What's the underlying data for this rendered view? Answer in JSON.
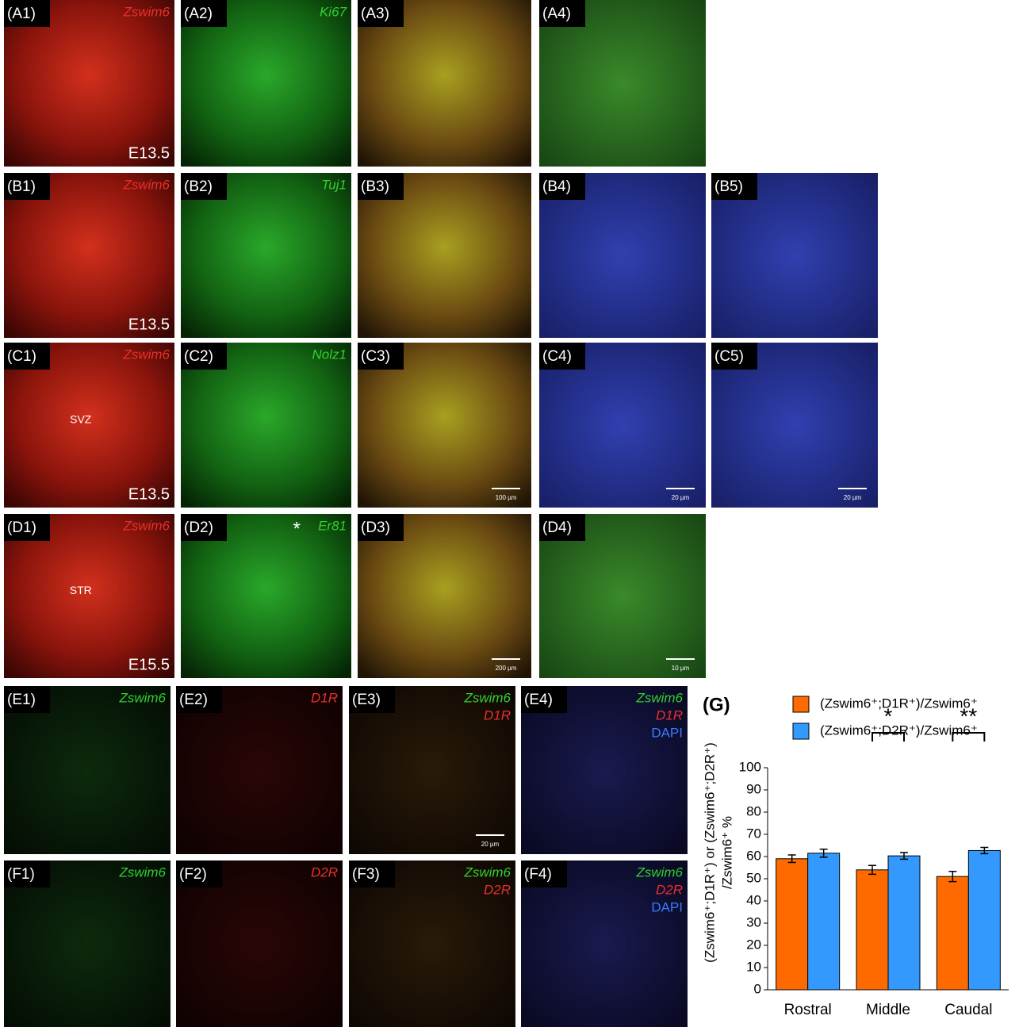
{
  "panels": [
    {
      "label": "(A1)",
      "texts": [
        "Zswim6",
        "E13.5"
      ]
    },
    {
      "label": "(A2)",
      "texts": [
        "Ki67"
      ]
    },
    {
      "label": "(A3)",
      "texts": []
    },
    {
      "label": "(A4)",
      "texts": []
    },
    {
      "label": "(B1)",
      "texts": [
        "Zswim6",
        "E13.5"
      ]
    },
    {
      "label": "(B2)",
      "texts": [
        "Tuj1"
      ]
    },
    {
      "label": "(B3)",
      "texts": []
    },
    {
      "label": "(B4)",
      "texts": []
    },
    {
      "label": "(B5)",
      "texts": []
    },
    {
      "label": "(C1)",
      "texts": [
        "Zswim6",
        "SVZ",
        "E13.5"
      ]
    },
    {
      "label": "(C2)",
      "texts": [
        "Nolz1"
      ]
    },
    {
      "label": "(C3)",
      "texts": [
        "100 µm"
      ]
    },
    {
      "label": "(C4)",
      "texts": [
        "20 µm"
      ]
    },
    {
      "label": "(C5)",
      "texts": [
        "20 µm"
      ]
    },
    {
      "label": "(D1)",
      "texts": [
        "Zswim6",
        "STR",
        "E15.5"
      ]
    },
    {
      "label": "(D2)",
      "texts": [
        "*",
        "Er81"
      ]
    },
    {
      "label": "(D3)",
      "texts": [
        "200 µm"
      ]
    },
    {
      "label": "(D4)",
      "texts": [
        "10 µm"
      ]
    },
    {
      "label": "(E1)",
      "texts": [
        "Zswim6"
      ]
    },
    {
      "label": "(E2)",
      "texts": [
        "D1R"
      ]
    },
    {
      "label": "(E3)",
      "texts": [
        "Zswim6",
        "D1R",
        "20 µm"
      ]
    },
    {
      "label": "(E4)",
      "texts": [
        "Zswim6",
        "D1R",
        "DAPI"
      ]
    },
    {
      "label": "(F1)",
      "texts": [
        "Zswim6"
      ]
    },
    {
      "label": "(F2)",
      "texts": [
        "D2R"
      ]
    },
    {
      "label": "(F3)",
      "texts": [
        "Zswim6",
        "D2R"
      ]
    },
    {
      "label": "(F4)",
      "texts": [
        "Zswim6",
        "D2R",
        "DAPI"
      ]
    }
  ],
  "chart_data": {
    "type": "bar",
    "label": "(G)",
    "y_label": [
      "(Zswim6⁺;D1R⁺) or (Zswim6⁺;D2R⁺)",
      "/Zswim6⁺ %"
    ],
    "categories": [
      "Rostral",
      "Middle",
      "Caudal"
    ],
    "series": [
      {
        "name": "(Zswim6⁺;D1R⁺)/Zswim6⁺",
        "color": "#ff6a00",
        "values": [
          59,
          54,
          51
        ],
        "errors": [
          1.7,
          2,
          2.3
        ]
      },
      {
        "name": "(Zswim6⁺;D2R⁺)/Zswim6⁺",
        "color": "#3399ff",
        "values": [
          61.5,
          60.3,
          62.7
        ],
        "errors": [
          1.8,
          1.5,
          1.4
        ]
      }
    ],
    "annotations": [
      {
        "text": "*",
        "category": "Middle"
      },
      {
        "text": "**",
        "category": "Caudal"
      }
    ],
    "ylim": [
      0,
      100
    ],
    "yticks": [
      0,
      10,
      20,
      30,
      40,
      50,
      60,
      70,
      80,
      90,
      100
    ]
  }
}
